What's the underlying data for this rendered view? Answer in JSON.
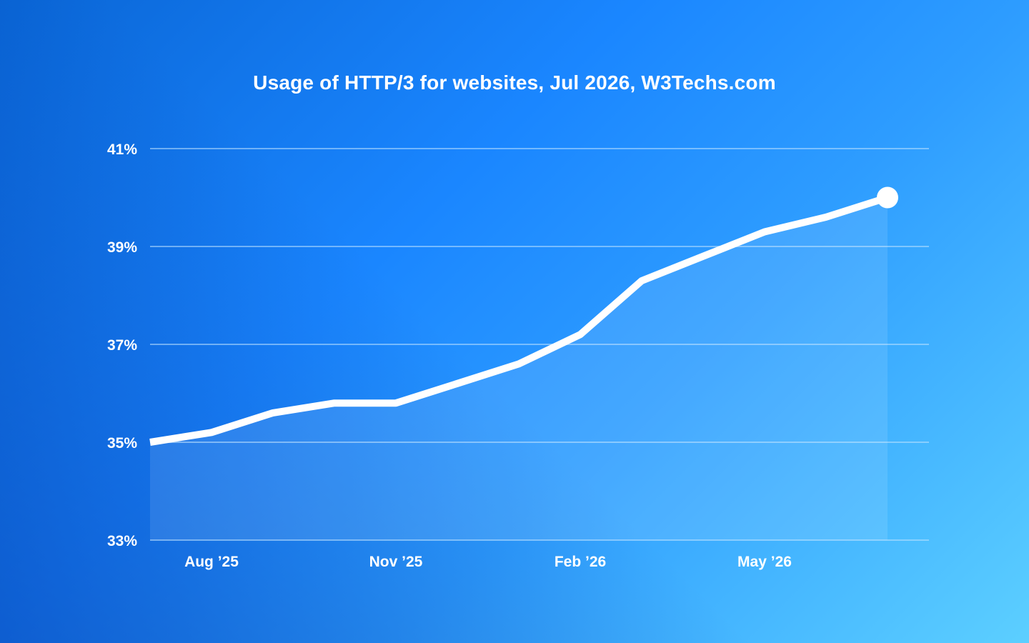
{
  "chart_data": {
    "type": "line",
    "title": "Usage of HTTP/3 for websites, Jul 2026, W3Techs.com",
    "xlabel": "",
    "ylabel": "",
    "x_ticks": [
      {
        "label": "Aug ’25",
        "x": "2025-08"
      },
      {
        "label": "Nov ’25",
        "x": "2025-11"
      },
      {
        "label": "Feb ’26",
        "x": "2026-02"
      },
      {
        "label": "May ’26",
        "x": "2026-05"
      }
    ],
    "y_ticks": [
      {
        "label": "41%",
        "value": 41
      },
      {
        "label": "39%",
        "value": 39
      },
      {
        "label": "37%",
        "value": 37
      },
      {
        "label": "35%",
        "value": 35
      },
      {
        "label": "33%",
        "value": 33
      }
    ],
    "ylim": [
      33,
      41
    ],
    "grid": true,
    "series": [
      {
        "x": [
          "2025-07-01",
          "2025-08-01",
          "2025-09-01",
          "2025-10-01",
          "2025-11-01",
          "2025-12-01",
          "2026-01-01",
          "2026-02-01",
          "2026-03-01",
          "2026-04-01",
          "2026-05-01",
          "2026-06-01",
          "2026-07-01"
        ],
        "values": [
          35.0,
          35.2,
          35.6,
          35.8,
          35.8,
          36.2,
          36.6,
          37.2,
          38.3,
          38.8,
          39.3,
          39.6,
          40.0
        ]
      }
    ],
    "colors": {
      "line": "#ffffff",
      "grid": "#8fc8ff"
    }
  }
}
